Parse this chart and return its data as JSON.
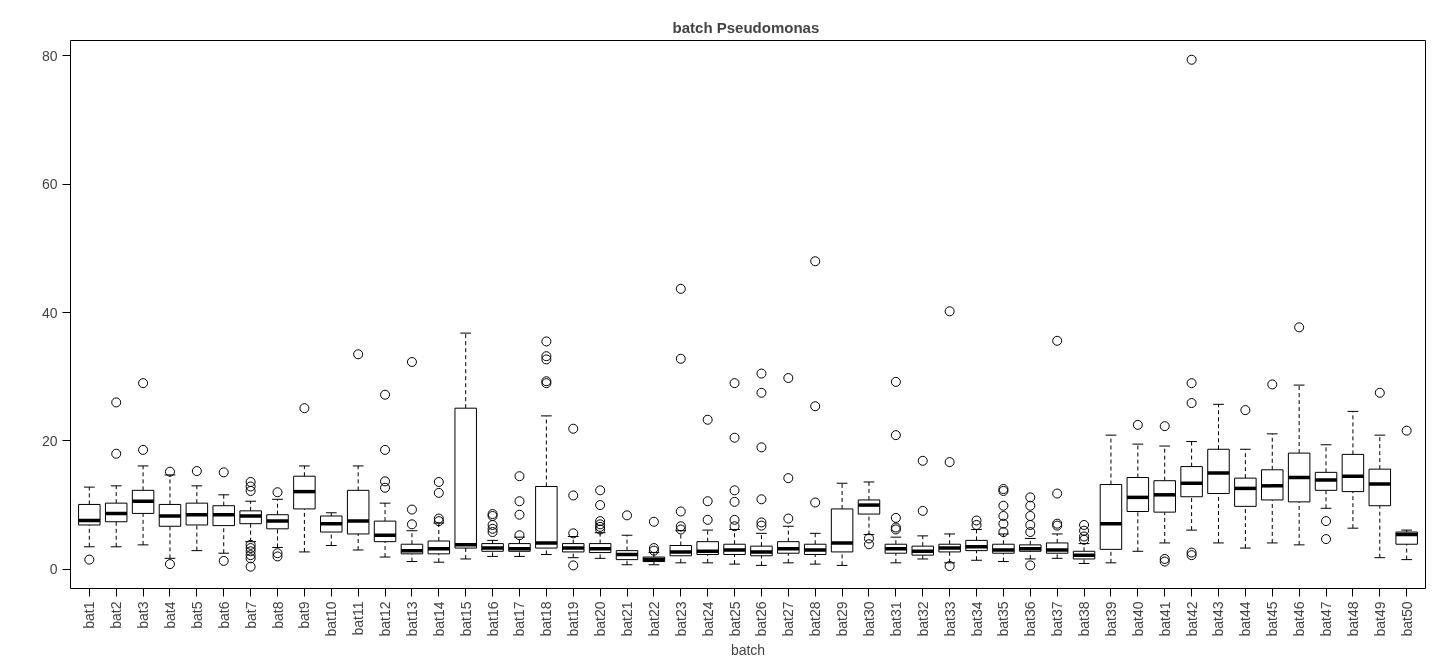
{
  "chart_data": {
    "type": "box",
    "title": "batch  Pseudomonas",
    "xlabel": "batch",
    "grid": false,
    "marker": "circle",
    "ylim": [
      -3,
      82.4
    ],
    "yticks": [
      0,
      20,
      40,
      60,
      80
    ],
    "categories": [
      "bat1",
      "bat2",
      "bat3",
      "bat4",
      "bat5",
      "bat6",
      "bat7",
      "bat8",
      "bat9",
      "bat10",
      "bat11",
      "bat12",
      "bat13",
      "bat14",
      "bat15",
      "bat16",
      "bat17",
      "bat18",
      "bat19",
      "bat20",
      "bat21",
      "bat22",
      "bat23",
      "bat24",
      "bat25",
      "bat26",
      "bat27",
      "bat28",
      "bat29",
      "bat30",
      "bat31",
      "bat32",
      "bat33",
      "bat34",
      "bat35",
      "bat36",
      "bat37",
      "bat38",
      "bat39",
      "bat40",
      "bat41",
      "bat42",
      "bat43",
      "bat44",
      "bat45",
      "bat46",
      "bat47",
      "bat48",
      "bat49",
      "bat50"
    ],
    "boxes": [
      {
        "low": 3.5,
        "q1": 6.9,
        "median": 7.6,
        "q3": 10.1,
        "high": 12.8,
        "outliers": [
          1.5
        ]
      },
      {
        "low": 3.5,
        "q1": 7.4,
        "median": 8.7,
        "q3": 10.3,
        "high": 13.0,
        "outliers": [
          18,
          26
        ]
      },
      {
        "low": 3.8,
        "q1": 8.7,
        "median": 10.6,
        "q3": 12.3,
        "high": 16.1,
        "outliers": [
          18.6,
          29
        ]
      },
      {
        "low": 1.7,
        "q1": 6.7,
        "median": 8.3,
        "q3": 10.1,
        "high": 14.7,
        "outliers": [
          15.2,
          0.8
        ]
      },
      {
        "low": 2.9,
        "q1": 6.9,
        "median": 8.5,
        "q3": 10.3,
        "high": 13.0,
        "outliers": [
          15.3
        ]
      },
      {
        "low": 2.5,
        "q1": 6.8,
        "median": 8.5,
        "q3": 9.9,
        "high": 11.6,
        "outliers": [
          15.1,
          1.3
        ]
      },
      {
        "low": 4.3,
        "q1": 7.1,
        "median": 8.3,
        "q3": 9.1,
        "high": 10.6,
        "outliers": [
          13.6,
          12.9,
          12.2,
          3.8,
          3.3,
          2.8,
          2.2,
          1.7,
          0.4
        ]
      },
      {
        "low": 3.4,
        "q1": 6.3,
        "median": 7.5,
        "q3": 8.5,
        "high": 10.9,
        "outliers": [
          12.0,
          2.5,
          2.0
        ]
      },
      {
        "low": 2.7,
        "q1": 9.4,
        "median": 12.1,
        "q3": 14.5,
        "high": 16.1,
        "outliers": [
          25.1
        ]
      },
      {
        "low": 3.7,
        "q1": 5.8,
        "median": 7.1,
        "q3": 8.3,
        "high": 8.8
      },
      {
        "low": 3.0,
        "q1": 5.5,
        "median": 7.5,
        "q3": 12.3,
        "high": 16.1,
        "outliers": [
          33.5
        ]
      },
      {
        "low": 1.9,
        "q1": 4.3,
        "median": 5.3,
        "q3": 7.5,
        "high": 10.3,
        "outliers": [
          27.2,
          18.6,
          13.7,
          12.7
        ]
      },
      {
        "low": 1.2,
        "q1": 2.4,
        "median": 2.9,
        "q3": 3.9,
        "high": 6.0,
        "outliers": [
          32.3,
          9.3,
          7.0
        ]
      },
      {
        "low": 1.1,
        "q1": 2.4,
        "median": 3.2,
        "q3": 4.4,
        "high": 7.2,
        "outliers": [
          13.6,
          11.9,
          7.9,
          7.5
        ]
      },
      {
        "low": 1.6,
        "q1": 3.3,
        "median": 3.8,
        "q3": 25.1,
        "high": 36.8
      },
      {
        "low": 2.0,
        "q1": 2.8,
        "median": 3.3,
        "q3": 4.0,
        "high": 4.5,
        "outliers": [
          8.6,
          8.3,
          6.9,
          6.3,
          5.8
        ]
      },
      {
        "low": 2.0,
        "q1": 2.8,
        "median": 3.2,
        "q3": 4.0,
        "high": 5.0,
        "outliers": [
          14.5,
          10.6,
          8.5,
          5.3
        ]
      },
      {
        "low": 2.3,
        "q1": 3.3,
        "median": 4.1,
        "q3": 12.9,
        "high": 23.9,
        "outliers": [
          35.5,
          33.2,
          32.7,
          29.3,
          29.0
        ]
      },
      {
        "low": 1.8,
        "q1": 2.7,
        "median": 3.3,
        "q3": 4.0,
        "high": 5.1,
        "outliers": [
          21.9,
          11.5,
          5.6,
          0.6
        ]
      },
      {
        "low": 1.7,
        "q1": 2.6,
        "median": 3.2,
        "q3": 4.0,
        "high": 5.7,
        "outliers": [
          12.3,
          10.0,
          7.5,
          7.0,
          6.6,
          6.2
        ]
      },
      {
        "low": 0.7,
        "q1": 1.5,
        "median": 2.3,
        "q3": 2.9,
        "high": 5.3,
        "outliers": [
          8.4
        ]
      },
      {
        "low": 0.7,
        "q1": 1.2,
        "median": 1.5,
        "q3": 1.9,
        "high": 2.6,
        "outliers": [
          7.4,
          3.3,
          2.9
        ]
      },
      {
        "low": 1.0,
        "q1": 2.1,
        "median": 2.7,
        "q3": 3.7,
        "high": 6.0,
        "outliers": [
          43.7,
          32.8,
          9.0,
          6.7,
          6.2
        ]
      },
      {
        "low": 1.0,
        "q1": 2.3,
        "median": 2.8,
        "q3": 4.3,
        "high": 6.1,
        "outliers": [
          23.3,
          10.6,
          7.7
        ]
      },
      {
        "low": 0.8,
        "q1": 2.3,
        "median": 3.0,
        "q3": 3.9,
        "high": 6.2,
        "outliers": [
          29.0,
          20.5,
          12.3,
          10.5,
          7.7,
          6.7
        ]
      },
      {
        "low": 0.6,
        "q1": 2.1,
        "median": 2.7,
        "q3": 3.6,
        "high": 5.6,
        "outliers": [
          30.5,
          27.5,
          19.0,
          10.9,
          7.3,
          6.8
        ]
      },
      {
        "low": 1.0,
        "q1": 2.5,
        "median": 3.2,
        "q3": 4.3,
        "high": 6.7,
        "outliers": [
          29.8,
          14.2,
          7.9
        ]
      },
      {
        "low": 0.8,
        "q1": 2.3,
        "median": 3.0,
        "q3": 3.9,
        "high": 5.6,
        "outliers": [
          48.0,
          25.4,
          10.4
        ]
      },
      {
        "low": 0.6,
        "q1": 2.7,
        "median": 4.1,
        "q3": 9.4,
        "high": 13.4
      },
      {
        "low": 5.4,
        "q1": 8.6,
        "median": 10.0,
        "q3": 10.8,
        "high": 13.6,
        "outliers": [
          4.8,
          3.9
        ]
      },
      {
        "low": 1.0,
        "q1": 2.5,
        "median": 3.2,
        "q3": 3.9,
        "high": 5.0,
        "outliers": [
          29.2,
          20.9,
          8.0,
          6.5,
          6.2
        ]
      },
      {
        "low": 1.6,
        "q1": 2.2,
        "median": 2.8,
        "q3": 3.6,
        "high": 5.2,
        "outliers": [
          16.9,
          9.1
        ]
      },
      {
        "low": 1.0,
        "q1": 2.7,
        "median": 3.3,
        "q3": 3.9,
        "high": 5.5,
        "outliers": [
          40.2,
          16.7,
          0.5
        ]
      },
      {
        "low": 1.4,
        "q1": 2.9,
        "median": 3.5,
        "q3": 4.5,
        "high": 6.2,
        "outliers": [
          7.6,
          6.9
        ]
      },
      {
        "low": 1.2,
        "q1": 2.5,
        "median": 3.0,
        "q3": 3.9,
        "high": 5.5,
        "outliers": [
          12.5,
          12.2,
          9.9,
          8.3,
          7.1,
          5.8
        ]
      },
      {
        "low": 1.6,
        "q1": 2.8,
        "median": 3.2,
        "q3": 3.8,
        "high": 4.8,
        "outliers": [
          11.2,
          9.9,
          8.3,
          6.9,
          5.8,
          0.6
        ]
      },
      {
        "low": 1.7,
        "q1": 2.5,
        "median": 3.0,
        "q3": 4.1,
        "high": 5.5,
        "outliers": [
          35.6,
          11.8,
          7.1,
          6.8
        ]
      },
      {
        "low": 0.9,
        "q1": 1.6,
        "median": 2.2,
        "q3": 2.8,
        "high": 4.0,
        "outliers": [
          6.9,
          6.0,
          5.1,
          4.6
        ]
      },
      {
        "low": 1.0,
        "q1": 3.1,
        "median": 7.1,
        "q3": 13.2,
        "high": 20.9
      },
      {
        "low": 2.8,
        "q1": 9.0,
        "median": 11.2,
        "q3": 14.3,
        "high": 19.5,
        "outliers": [
          22.5
        ]
      },
      {
        "low": 4.1,
        "q1": 8.9,
        "median": 11.6,
        "q3": 13.8,
        "high": 19.2,
        "outliers": [
          22.3,
          1.6,
          1.2
        ]
      },
      {
        "low": 6.1,
        "q1": 11.3,
        "median": 13.4,
        "q3": 16.0,
        "high": 19.9,
        "outliers": [
          79.4,
          29.0,
          25.9,
          2.6,
          2.2
        ]
      },
      {
        "low": 4.1,
        "q1": 11.8,
        "median": 15.0,
        "q3": 18.7,
        "high": 25.7
      },
      {
        "low": 3.3,
        "q1": 9.8,
        "median": 12.6,
        "q3": 14.2,
        "high": 18.7,
        "outliers": [
          24.8
        ]
      },
      {
        "low": 4.1,
        "q1": 10.8,
        "median": 13.0,
        "q3": 15.5,
        "high": 21.1,
        "outliers": [
          28.8
        ]
      },
      {
        "low": 3.8,
        "q1": 10.5,
        "median": 14.3,
        "q3": 18.1,
        "high": 28.7,
        "outliers": [
          37.7
        ]
      },
      {
        "low": 9.5,
        "q1": 12.3,
        "median": 13.9,
        "q3": 15.1,
        "high": 19.4,
        "outliers": [
          7.5,
          4.7
        ]
      },
      {
        "low": 6.4,
        "q1": 12.1,
        "median": 14.5,
        "q3": 17.9,
        "high": 24.6
      },
      {
        "low": 1.8,
        "q1": 9.9,
        "median": 13.3,
        "q3": 15.6,
        "high": 20.9,
        "outliers": [
          27.5
        ]
      },
      {
        "low": 1.5,
        "q1": 3.9,
        "median": 5.4,
        "q3": 5.8,
        "high": 6.1,
        "outliers": [
          21.6
        ]
      }
    ]
  }
}
